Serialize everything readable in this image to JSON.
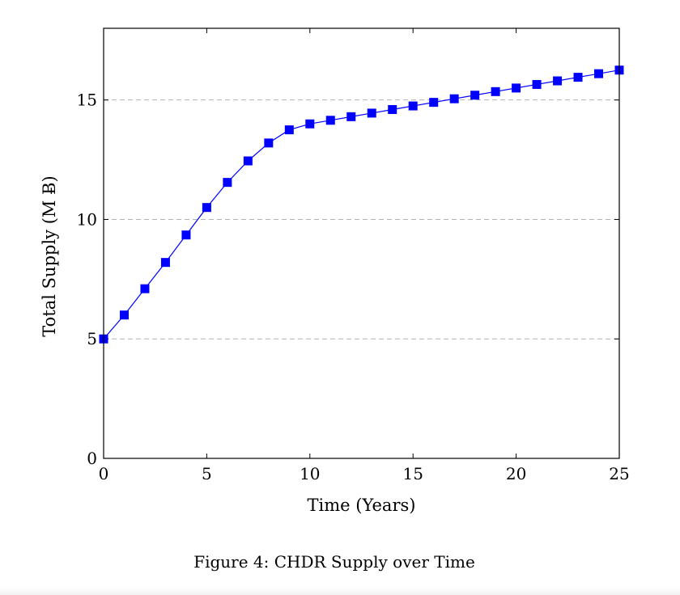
{
  "chart_data": {
    "type": "line",
    "title": "",
    "xlabel": "Time (Years)",
    "ylabel": "Total Supply (M Ƀ)",
    "xlim": [
      0,
      25
    ],
    "ylim": [
      0,
      18
    ],
    "xticks": [
      0,
      5,
      10,
      15,
      20,
      25
    ],
    "yticks": [
      0,
      5,
      10,
      15
    ],
    "grid": "horizontal-dashed",
    "marker": "square",
    "color": "#0000ff",
    "x": [
      0,
      1,
      2,
      3,
      4,
      5,
      6,
      7,
      8,
      9,
      10,
      11,
      12,
      13,
      14,
      15,
      16,
      17,
      18,
      19,
      20,
      21,
      22,
      23,
      24,
      25
    ],
    "y": [
      5.0,
      6.0,
      7.1,
      8.2,
      9.35,
      10.5,
      11.55,
      12.45,
      13.2,
      13.75,
      14.0,
      14.15,
      14.3,
      14.45,
      14.6,
      14.75,
      14.9,
      15.05,
      15.2,
      15.35,
      15.5,
      15.65,
      15.8,
      15.95,
      16.1,
      16.25
    ]
  },
  "caption": "Figure 4: CHDR Supply over Time"
}
